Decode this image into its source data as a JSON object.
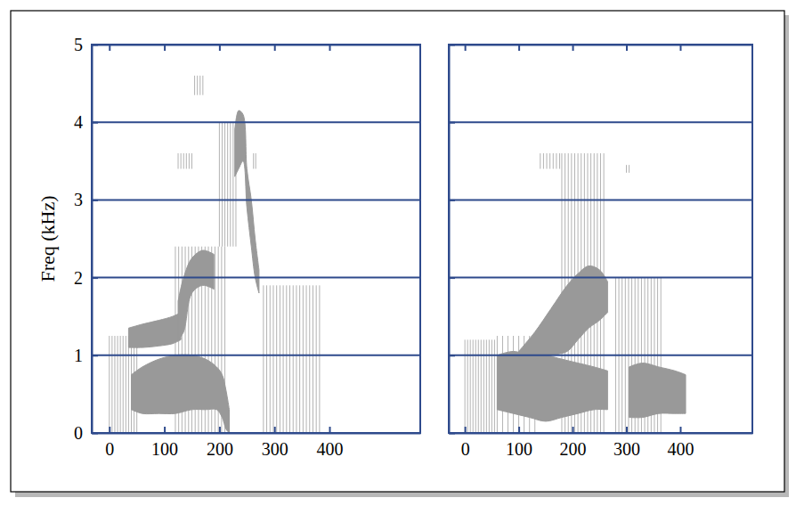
{
  "chart_data": [
    {
      "type": "area",
      "ylabel": "Freq (kHz)",
      "xlim": [
        -32,
        565
      ],
      "ylim": [
        0,
        5
      ],
      "xticks": [
        0,
        100,
        200,
        300,
        400
      ],
      "yticks": [
        0,
        1,
        2,
        3,
        4,
        5
      ],
      "grid": true,
      "series": [
        {
          "type": "vlines",
          "color": "#aaaaaa",
          "x": [
            0,
            5,
            10,
            15,
            20,
            25,
            30,
            35,
            40,
            45,
            50
          ],
          "values": [
            1.25,
            1.25,
            1.25,
            1.25,
            1.25,
            1.25,
            1.25,
            1.25,
            1.25,
            1.25,
            1.25
          ],
          "lower": [
            0,
            0,
            0,
            0,
            0,
            0,
            0,
            0,
            0,
            0,
            0
          ]
        },
        {
          "type": "vlines",
          "color": "#aaaaaa",
          "x": [
            120,
            126,
            132,
            138,
            144,
            150,
            156,
            162,
            168,
            174,
            180,
            186,
            192,
            198,
            204,
            210
          ],
          "values": [
            2.4,
            2.4,
            2.4,
            2.4,
            2.4,
            2.4,
            2.4,
            2.4,
            2.4,
            2.4,
            2.4,
            2.4,
            2.4,
            2.4,
            2.4,
            2.4
          ],
          "lower": [
            0,
            0,
            0,
            0,
            0,
            0,
            0,
            0,
            0,
            0,
            0,
            0,
            0,
            0,
            0,
            0
          ]
        },
        {
          "type": "vlines",
          "color": "#aaaaaa",
          "x": [
            125,
            130,
            135,
            140,
            145,
            150
          ],
          "values": [
            3.6,
            3.6,
            3.6,
            3.6,
            3.6,
            3.6
          ],
          "lower": [
            3.4,
            3.4,
            3.4,
            3.4,
            3.4,
            3.4
          ]
        },
        {
          "type": "vlines",
          "color": "#aaaaaa",
          "x": [
            155,
            160,
            165,
            170
          ],
          "values": [
            4.6,
            4.6,
            4.6,
            4.6
          ],
          "lower": [
            4.35,
            4.35,
            4.35,
            4.35
          ]
        },
        {
          "type": "vlines",
          "color": "#aaaaaa",
          "x": [
            200,
            205,
            210,
            215,
            220,
            225,
            230
          ],
          "values": [
            4.0,
            4.0,
            4.0,
            4.0,
            4.0,
            4.0,
            4.0
          ],
          "lower": [
            2.4,
            2.4,
            2.4,
            2.4,
            2.4,
            2.4,
            2.4
          ]
        },
        {
          "type": "vlines",
          "color": "#aaaaaa",
          "x": [
            280,
            286,
            292,
            298,
            304,
            310,
            316,
            322,
            328,
            334,
            340,
            346,
            352,
            358,
            364,
            370,
            376,
            382
          ],
          "values": [
            1.9,
            1.9,
            1.9,
            1.9,
            1.9,
            1.9,
            1.9,
            1.9,
            1.9,
            1.9,
            1.9,
            1.9,
            1.9,
            1.9,
            1.9,
            1.9,
            1.9,
            1.9
          ],
          "lower": [
            0,
            0,
            0,
            0,
            0,
            0,
            0,
            0,
            0,
            0,
            0,
            0,
            0,
            0,
            0,
            0,
            0,
            0
          ]
        },
        {
          "type": "vlines",
          "color": "#aaaaaa",
          "x": [
            262,
            266
          ],
          "values": [
            3.6,
            3.6
          ],
          "lower": [
            3.4,
            3.4
          ]
        },
        {
          "type": "area",
          "color": "#999999",
          "x": [
            40,
            60,
            90,
            120,
            150,
            175,
            195,
            205,
            212,
            218
          ],
          "values": [
            0.75,
            0.85,
            0.95,
            1.0,
            1.0,
            0.95,
            0.85,
            0.75,
            0.55,
            0.3
          ],
          "lower": [
            0.3,
            0.25,
            0.25,
            0.25,
            0.3,
            0.3,
            0.3,
            0.2,
            0.05,
            0.0
          ]
        },
        {
          "type": "area",
          "color": "#999999",
          "x": [
            35,
            60,
            90,
            115,
            130
          ],
          "values": [
            1.35,
            1.4,
            1.45,
            1.5,
            1.55
          ],
          "lower": [
            1.1,
            1.1,
            1.12,
            1.15,
            1.2
          ]
        },
        {
          "type": "area",
          "color": "#999999",
          "x": [
            125,
            135,
            150,
            170,
            190
          ],
          "values": [
            1.7,
            2.0,
            2.25,
            2.35,
            2.3
          ],
          "lower": [
            1.2,
            1.3,
            1.8,
            1.9,
            1.85
          ]
        },
        {
          "type": "area",
          "color": "#999999",
          "x": [
            228,
            235,
            243,
            250,
            258,
            265,
            272
          ],
          "values": [
            3.9,
            4.15,
            4.1,
            3.4,
            3.0,
            2.5,
            2.1
          ],
          "lower": [
            3.3,
            3.4,
            3.5,
            2.9,
            2.4,
            2.0,
            1.8
          ]
        }
      ]
    },
    {
      "type": "area",
      "tick_labels": "x",
      "xlim": [
        -30,
        534
      ],
      "ylim": [
        0,
        5
      ],
      "xticks": [
        0,
        100,
        200,
        300,
        400
      ],
      "yticks": [
        0,
        1,
        2,
        3,
        4,
        5
      ],
      "grid": true,
      "series": [
        {
          "type": "vlines",
          "color": "#aaaaaa",
          "x": [
            0,
            5,
            10,
            15,
            20,
            25,
            30,
            35,
            40,
            45,
            50,
            55
          ],
          "values": [
            1.2,
            1.2,
            1.2,
            1.2,
            1.2,
            1.2,
            1.2,
            1.2,
            1.2,
            1.2,
            1.2,
            1.2
          ],
          "lower": [
            0,
            0,
            0,
            0,
            0,
            0,
            0,
            0,
            0,
            0,
            0,
            0
          ]
        },
        {
          "type": "vlines",
          "color": "#aaaaaa",
          "x": [
            180,
            186,
            192,
            198,
            204,
            210,
            216,
            222,
            228,
            234,
            240,
            246,
            252,
            258
          ],
          "values": [
            3.6,
            3.6,
            3.6,
            3.6,
            3.6,
            3.6,
            3.6,
            3.6,
            3.6,
            3.6,
            3.6,
            3.6,
            3.6,
            3.6
          ],
          "lower": [
            0,
            0,
            0,
            0,
            0,
            0,
            0,
            0,
            0,
            0,
            0,
            0,
            0,
            0
          ]
        },
        {
          "type": "vlines",
          "color": "#aaaaaa",
          "x": [
            140,
            146,
            152,
            158,
            164,
            170,
            176
          ],
          "values": [
            3.6,
            3.6,
            3.6,
            3.6,
            3.6,
            3.6,
            3.6
          ],
          "lower": [
            3.4,
            3.4,
            3.4,
            3.4,
            3.4,
            3.4,
            3.4
          ]
        },
        {
          "type": "vlines",
          "color": "#aaaaaa",
          "x": [
            60,
            70,
            80,
            90,
            100,
            110,
            120,
            130
          ],
          "values": [
            1.25,
            1.25,
            1.25,
            1.25,
            1.25,
            1.25,
            1.25,
            1.25
          ],
          "lower": [
            0,
            0,
            0,
            0,
            0,
            0,
            0,
            0
          ]
        },
        {
          "type": "vlines",
          "color": "#aaaaaa",
          "x": [
            280,
            286,
            292,
            298,
            304,
            310,
            316,
            322,
            328,
            334,
            340,
            346,
            352,
            358,
            364
          ],
          "values": [
            2.0,
            2.0,
            2.0,
            2.0,
            2.0,
            2.0,
            2.0,
            2.0,
            2.0,
            2.0,
            2.0,
            2.0,
            2.0,
            2.0,
            2.0
          ],
          "lower": [
            0,
            0,
            0,
            0,
            0,
            0,
            0,
            0,
            0,
            0,
            0,
            0,
            0,
            0,
            0
          ]
        },
        {
          "type": "vlines",
          "color": "#aaaaaa",
          "x": [
            300,
            305
          ],
          "values": [
            3.45,
            3.45
          ],
          "lower": [
            3.35,
            3.35
          ]
        },
        {
          "type": "area",
          "color": "#999999",
          "x": [
            60,
            90,
            120,
            150,
            180,
            210,
            240,
            265
          ],
          "values": [
            1.0,
            1.05,
            1.0,
            1.0,
            0.95,
            0.9,
            0.85,
            0.8
          ],
          "lower": [
            0.3,
            0.25,
            0.2,
            0.15,
            0.2,
            0.25,
            0.3,
            0.3
          ]
        },
        {
          "type": "area",
          "color": "#999999",
          "x": [
            100,
            130,
            160,
            190,
            210,
            230,
            250,
            265
          ],
          "values": [
            1.05,
            1.3,
            1.6,
            1.9,
            2.05,
            2.15,
            2.1,
            1.95
          ],
          "lower": [
            0.95,
            0.95,
            1.0,
            1.05,
            1.2,
            1.35,
            1.45,
            1.55
          ]
        },
        {
          "type": "area",
          "color": "#999999",
          "x": [
            305,
            330,
            360,
            390,
            410
          ],
          "values": [
            0.85,
            0.9,
            0.85,
            0.8,
            0.75
          ],
          "lower": [
            0.2,
            0.2,
            0.25,
            0.25,
            0.25
          ]
        }
      ]
    }
  ]
}
